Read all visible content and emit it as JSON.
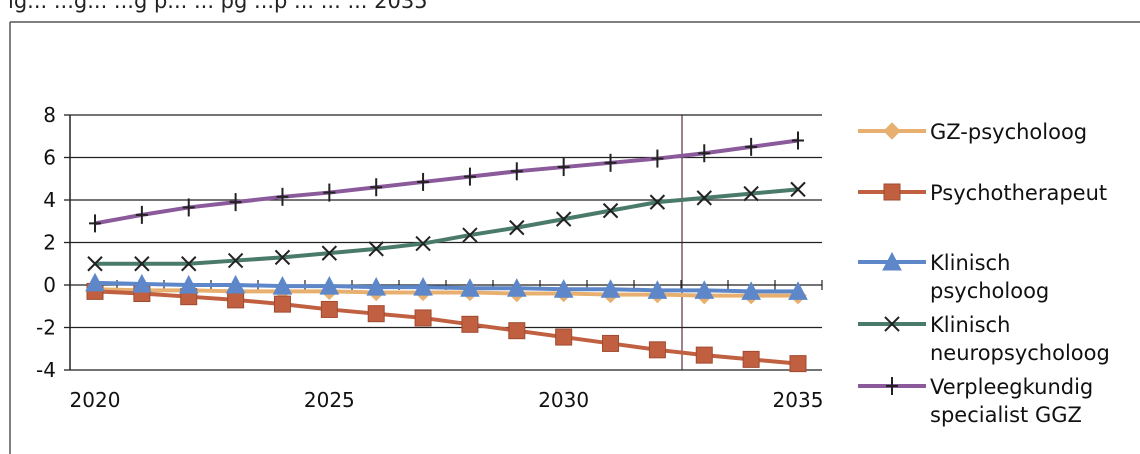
{
  "header_partial": "ig...  ...g... ...g p... ... pg ...p ... ... ... 2035",
  "chart_data": {
    "type": "line",
    "x": [
      2020,
      2021,
      2022,
      2023,
      2024,
      2025,
      2026,
      2027,
      2028,
      2029,
      2030,
      2031,
      2032,
      2033,
      2034,
      2035
    ],
    "xlim": [
      2020,
      2035
    ],
    "xticks": [
      "2020",
      "2025",
      "2030",
      "2035"
    ],
    "ylim": [
      -4,
      8
    ],
    "yticks": [
      "8",
      "6",
      "4",
      "2",
      "0",
      "-2",
      "-4"
    ],
    "grid": "horizontal",
    "legend": "right",
    "series": [
      {
        "name": "GZ-psycholoog",
        "label_lines": [
          "GZ-psycholoog"
        ],
        "marker": "diamond",
        "color": "#e8b070",
        "values": [
          -0.2,
          -0.25,
          -0.25,
          -0.3,
          -0.3,
          -0.3,
          -0.35,
          -0.35,
          -0.35,
          -0.4,
          -0.4,
          -0.45,
          -0.45,
          -0.5,
          -0.5,
          -0.5
        ]
      },
      {
        "name": "Psychotherapeut",
        "label_lines": [
          "Psychotherapeut"
        ],
        "marker": "square",
        "color": "#c06040",
        "values": [
          -0.3,
          -0.4,
          -0.55,
          -0.7,
          -0.9,
          -1.15,
          -1.35,
          -1.55,
          -1.85,
          -2.15,
          -2.45,
          -2.75,
          -3.05,
          -3.3,
          -3.5,
          -3.7
        ]
      },
      {
        "name": "Klinisch psycholoog",
        "label_lines": [
          "Klinisch",
          "psycholoog"
        ],
        "marker": "triangle",
        "color": "#5d87c8",
        "values": [
          0.1,
          0.05,
          0.0,
          0.0,
          -0.05,
          -0.05,
          -0.1,
          -0.1,
          -0.15,
          -0.15,
          -0.2,
          -0.2,
          -0.25,
          -0.25,
          -0.3,
          -0.3
        ]
      },
      {
        "name": "Klinisch neuropsycholoog",
        "label_lines": [
          "Klinisch",
          "neuropsycholoog"
        ],
        "marker": "x",
        "color": "#4a7a6a",
        "values": [
          1.0,
          1.0,
          1.0,
          1.15,
          1.3,
          1.5,
          1.7,
          1.95,
          2.35,
          2.7,
          3.1,
          3.5,
          3.9,
          4.1,
          4.3,
          4.5
        ]
      },
      {
        "name": "Verpleegkundig specialist GGZ",
        "label_lines": [
          "Verpleegkundig",
          "specialist GGZ"
        ],
        "marker": "plus",
        "color": "#8a5a9a",
        "values": [
          2.9,
          3.3,
          3.65,
          3.9,
          4.15,
          4.35,
          4.6,
          4.85,
          5.1,
          5.35,
          5.55,
          5.75,
          5.95,
          6.2,
          6.5,
          6.8
        ]
      }
    ]
  }
}
